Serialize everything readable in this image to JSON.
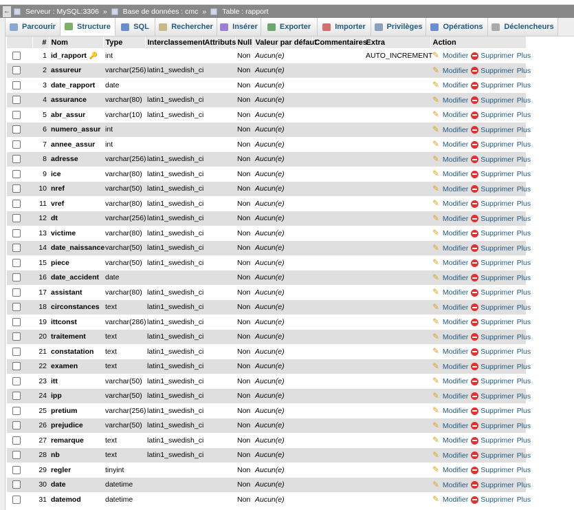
{
  "breadcrumb": {
    "server": "Serveur : MySQL:3306",
    "database": "Base de données : cmc",
    "table": "Table : rapport",
    "separator": "»"
  },
  "tabs": [
    {
      "label": "Parcourir",
      "icon": "browse-icon",
      "color": "#8aa8d0"
    },
    {
      "label": "Structure",
      "icon": "structure-icon",
      "color": "#7fb06a",
      "active": true
    },
    {
      "label": "SQL",
      "icon": "sql-icon",
      "color": "#6a8fc7"
    },
    {
      "label": "Rechercher",
      "icon": "search-icon",
      "color": "#c9b88a"
    },
    {
      "label": "Insérer",
      "icon": "insert-icon",
      "color": "#9b7fd1"
    },
    {
      "label": "Exporter",
      "icon": "export-icon",
      "color": "#6aa870"
    },
    {
      "label": "Importer",
      "icon": "import-icon",
      "color": "#d07070"
    },
    {
      "label": "Privilèges",
      "icon": "privileges-icon",
      "color": "#8aa0c0"
    },
    {
      "label": "Opérations",
      "icon": "wrench-icon",
      "color": "#6a8fd0"
    },
    {
      "label": "Déclencheurs",
      "icon": "triggers-icon",
      "color": "#aaaaaa"
    }
  ],
  "columns": [
    "#",
    "Nom",
    "Type",
    "Interclassement",
    "Attributs",
    "Null",
    "Valeur par défaut",
    "Commentaires",
    "Extra",
    "Action"
  ],
  "actions": {
    "edit": "Modifier",
    "delete": "Supprimer",
    "more": "Plus"
  },
  "rows": [
    {
      "n": "1",
      "name": "id_rapport",
      "type": "int",
      "coll": "",
      "null": "Non",
      "def": "Aucun(e)",
      "extra": "AUTO_INCREMENT",
      "primary": true
    },
    {
      "n": "2",
      "name": "assureur",
      "type": "varchar(256)",
      "coll": "latin1_swedish_ci",
      "null": "Non",
      "def": "Aucun(e)",
      "extra": ""
    },
    {
      "n": "3",
      "name": "date_rapport",
      "type": "date",
      "coll": "",
      "null": "Non",
      "def": "Aucun(e)",
      "extra": ""
    },
    {
      "n": "4",
      "name": "assurance",
      "type": "varchar(80)",
      "coll": "latin1_swedish_ci",
      "null": "Non",
      "def": "Aucun(e)",
      "extra": ""
    },
    {
      "n": "5",
      "name": "abr_assur",
      "type": "varchar(10)",
      "coll": "latin1_swedish_ci",
      "null": "Non",
      "def": "Aucun(e)",
      "extra": ""
    },
    {
      "n": "6",
      "name": "numero_assur",
      "type": "int",
      "coll": "",
      "null": "Non",
      "def": "Aucun(e)",
      "extra": ""
    },
    {
      "n": "7",
      "name": "annee_assur",
      "type": "int",
      "coll": "",
      "null": "Non",
      "def": "Aucun(e)",
      "extra": ""
    },
    {
      "n": "8",
      "name": "adresse",
      "type": "varchar(256)",
      "coll": "latin1_swedish_ci",
      "null": "Non",
      "def": "Aucun(e)",
      "extra": ""
    },
    {
      "n": "9",
      "name": "ice",
      "type": "varchar(80)",
      "coll": "latin1_swedish_ci",
      "null": "Non",
      "def": "Aucun(e)",
      "extra": ""
    },
    {
      "n": "10",
      "name": "nref",
      "type": "varchar(50)",
      "coll": "latin1_swedish_ci",
      "null": "Non",
      "def": "Aucun(e)",
      "extra": ""
    },
    {
      "n": "11",
      "name": "vref",
      "type": "varchar(80)",
      "coll": "latin1_swedish_ci",
      "null": "Non",
      "def": "Aucun(e)",
      "extra": ""
    },
    {
      "n": "12",
      "name": "dt",
      "type": "varchar(256)",
      "coll": "latin1_swedish_ci",
      "null": "Non",
      "def": "Aucun(e)",
      "extra": ""
    },
    {
      "n": "13",
      "name": "victime",
      "type": "varchar(80)",
      "coll": "latin1_swedish_ci",
      "null": "Non",
      "def": "Aucun(e)",
      "extra": ""
    },
    {
      "n": "14",
      "name": "date_naissance",
      "type": "varchar(50)",
      "coll": "latin1_swedish_ci",
      "null": "Non",
      "def": "Aucun(e)",
      "extra": ""
    },
    {
      "n": "15",
      "name": "piece",
      "type": "varchar(50)",
      "coll": "latin1_swedish_ci",
      "null": "Non",
      "def": "Aucun(e)",
      "extra": ""
    },
    {
      "n": "16",
      "name": "date_accident",
      "type": "date",
      "coll": "",
      "null": "Non",
      "def": "Aucun(e)",
      "extra": ""
    },
    {
      "n": "17",
      "name": "assistant",
      "type": "varchar(80)",
      "coll": "latin1_swedish_ci",
      "null": "Non",
      "def": "Aucun(e)",
      "extra": ""
    },
    {
      "n": "18",
      "name": "circonstances",
      "type": "text",
      "coll": "latin1_swedish_ci",
      "null": "Non",
      "def": "Aucun(e)",
      "extra": ""
    },
    {
      "n": "19",
      "name": "ittconst",
      "type": "varchar(286)",
      "coll": "latin1_swedish_ci",
      "null": "Non",
      "def": "Aucun(e)",
      "extra": ""
    },
    {
      "n": "20",
      "name": "traitement",
      "type": "text",
      "coll": "latin1_swedish_ci",
      "null": "Non",
      "def": "Aucun(e)",
      "extra": ""
    },
    {
      "n": "21",
      "name": "constatation",
      "type": "text",
      "coll": "latin1_swedish_ci",
      "null": "Non",
      "def": "Aucun(e)",
      "extra": ""
    },
    {
      "n": "22",
      "name": "examen",
      "type": "text",
      "coll": "latin1_swedish_ci",
      "null": "Non",
      "def": "Aucun(e)",
      "extra": ""
    },
    {
      "n": "23",
      "name": "itt",
      "type": "varchar(50)",
      "coll": "latin1_swedish_ci",
      "null": "Non",
      "def": "Aucun(e)",
      "extra": ""
    },
    {
      "n": "24",
      "name": "ipp",
      "type": "varchar(50)",
      "coll": "latin1_swedish_ci",
      "null": "Non",
      "def": "Aucun(e)",
      "extra": ""
    },
    {
      "n": "25",
      "name": "pretium",
      "type": "varchar(256)",
      "coll": "latin1_swedish_ci",
      "null": "Non",
      "def": "Aucun(e)",
      "extra": ""
    },
    {
      "n": "26",
      "name": "prejudice",
      "type": "varchar(50)",
      "coll": "latin1_swedish_ci",
      "null": "Non",
      "def": "Aucun(e)",
      "extra": ""
    },
    {
      "n": "27",
      "name": "remarque",
      "type": "text",
      "coll": "latin1_swedish_ci",
      "null": "Non",
      "def": "Aucun(e)",
      "extra": ""
    },
    {
      "n": "28",
      "name": "nb",
      "type": "text",
      "coll": "latin1_swedish_ci",
      "null": "Non",
      "def": "Aucun(e)",
      "extra": ""
    },
    {
      "n": "29",
      "name": "regler",
      "type": "tinyint",
      "coll": "",
      "null": "Non",
      "def": "Aucun(e)",
      "extra": ""
    },
    {
      "n": "30",
      "name": "date",
      "type": "datetime",
      "coll": "",
      "null": "Non",
      "def": "Aucun(e)",
      "extra": ""
    },
    {
      "n": "31",
      "name": "datemod",
      "type": "datetime",
      "coll": "",
      "null": "Non",
      "def": "Aucun(e)",
      "extra": ""
    }
  ]
}
